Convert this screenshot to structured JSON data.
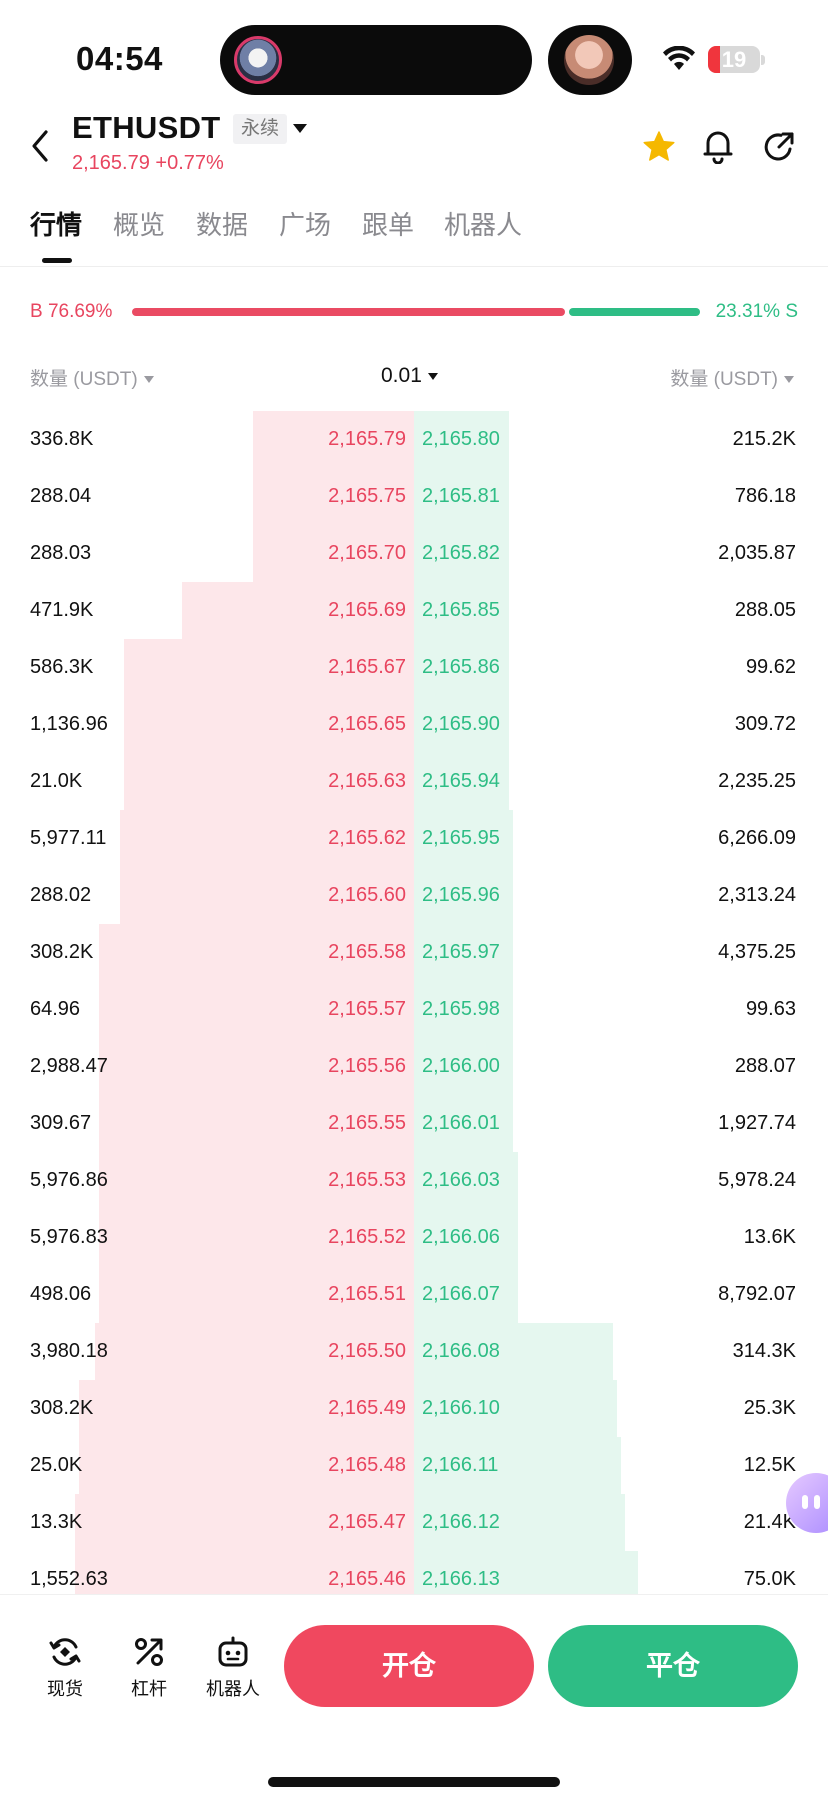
{
  "status": {
    "time": "04:54",
    "battery": "19"
  },
  "header": {
    "symbol": "ETHUSDT",
    "tag": "永续",
    "price_line": "2,165.79 +0.77%"
  },
  "tabs": [
    {
      "label": "行情"
    },
    {
      "label": "概览"
    },
    {
      "label": "数据"
    },
    {
      "label": "广场"
    },
    {
      "label": "跟单"
    },
    {
      "label": "机器人"
    }
  ],
  "ratio": {
    "buy_label": "B 76.69%",
    "sell_label": "23.31% S",
    "buy_fraction": 0.7669,
    "sell_fraction": 0.2331
  },
  "columns": {
    "bid_qty": "数量 (USDT)",
    "precision": "0.01",
    "ask_qty": "数量 (USDT)"
  },
  "orderbook": [
    {
      "bid_qty": "336.8K",
      "bid": "2,165.79",
      "ask": "2,165.80",
      "ask_qty": "215.2K",
      "bid_depth": 0.39,
      "ask_depth": 0.23
    },
    {
      "bid_qty": "288.04",
      "bid": "2,165.75",
      "ask": "2,165.81",
      "ask_qty": "786.18",
      "bid_depth": 0.39,
      "ask_depth": 0.23
    },
    {
      "bid_qty": "288.03",
      "bid": "2,165.70",
      "ask": "2,165.82",
      "ask_qty": "2,035.87",
      "bid_depth": 0.39,
      "ask_depth": 0.23
    },
    {
      "bid_qty": "471.9K",
      "bid": "2,165.69",
      "ask": "2,165.85",
      "ask_qty": "288.05",
      "bid_depth": 0.56,
      "ask_depth": 0.23
    },
    {
      "bid_qty": "586.3K",
      "bid": "2,165.67",
      "ask": "2,165.86",
      "ask_qty": "99.62",
      "bid_depth": 0.7,
      "ask_depth": 0.23
    },
    {
      "bid_qty": "1,136.96",
      "bid": "2,165.65",
      "ask": "2,165.90",
      "ask_qty": "309.72",
      "bid_depth": 0.7,
      "ask_depth": 0.23
    },
    {
      "bid_qty": "21.0K",
      "bid": "2,165.63",
      "ask": "2,165.94",
      "ask_qty": "2,235.25",
      "bid_depth": 0.7,
      "ask_depth": 0.23
    },
    {
      "bid_qty": "5,977.11",
      "bid": "2,165.62",
      "ask": "2,165.95",
      "ask_qty": "6,266.09",
      "bid_depth": 0.71,
      "ask_depth": 0.24
    },
    {
      "bid_qty": "288.02",
      "bid": "2,165.60",
      "ask": "2,165.96",
      "ask_qty": "2,313.24",
      "bid_depth": 0.71,
      "ask_depth": 0.24
    },
    {
      "bid_qty": "308.2K",
      "bid": "2,165.58",
      "ask": "2,165.97",
      "ask_qty": "4,375.25",
      "bid_depth": 0.76,
      "ask_depth": 0.24
    },
    {
      "bid_qty": "64.96",
      "bid": "2,165.57",
      "ask": "2,165.98",
      "ask_qty": "99.63",
      "bid_depth": 0.76,
      "ask_depth": 0.24
    },
    {
      "bid_qty": "2,988.47",
      "bid": "2,165.56",
      "ask": "2,166.00",
      "ask_qty": "288.07",
      "bid_depth": 0.76,
      "ask_depth": 0.24
    },
    {
      "bid_qty": "309.67",
      "bid": "2,165.55",
      "ask": "2,166.01",
      "ask_qty": "1,927.74",
      "bid_depth": 0.76,
      "ask_depth": 0.24
    },
    {
      "bid_qty": "5,976.86",
      "bid": "2,165.53",
      "ask": "2,166.03",
      "ask_qty": "5,978.24",
      "bid_depth": 0.76,
      "ask_depth": 0.25
    },
    {
      "bid_qty": "5,976.83",
      "bid": "2,165.52",
      "ask": "2,166.06",
      "ask_qty": "13.6K",
      "bid_depth": 0.76,
      "ask_depth": 0.25
    },
    {
      "bid_qty": "498.06",
      "bid": "2,165.51",
      "ask": "2,166.07",
      "ask_qty": "8,792.07",
      "bid_depth": 0.76,
      "ask_depth": 0.25
    },
    {
      "bid_qty": "3,980.18",
      "bid": "2,165.50",
      "ask": "2,166.08",
      "ask_qty": "314.3K",
      "bid_depth": 0.77,
      "ask_depth": 0.48
    },
    {
      "bid_qty": "308.2K",
      "bid": "2,165.49",
      "ask": "2,166.10",
      "ask_qty": "25.3K",
      "bid_depth": 0.81,
      "ask_depth": 0.49
    },
    {
      "bid_qty": "25.0K",
      "bid": "2,165.48",
      "ask": "2,166.11",
      "ask_qty": "12.5K",
      "bid_depth": 0.81,
      "ask_depth": 0.5
    },
    {
      "bid_qty": "13.3K",
      "bid": "2,165.47",
      "ask": "2,166.12",
      "ask_qty": "21.4K",
      "bid_depth": 0.82,
      "ask_depth": 0.51
    },
    {
      "bid_qty": "1,552.63",
      "bid": "2,165.46",
      "ask": "2,166.13",
      "ask_qty": "75.0K",
      "bid_depth": 0.82,
      "ask_depth": 0.54
    }
  ],
  "toolbar": {
    "spot": "现货",
    "leverage": "杠杆",
    "robot": "机器人",
    "open": "开仓",
    "close": "平仓"
  },
  "colors": {
    "buy": "#e8455f",
    "sell": "#2ebd85",
    "bid_bg": "#fde7ea",
    "ask_bg": "#e5f7ef"
  }
}
